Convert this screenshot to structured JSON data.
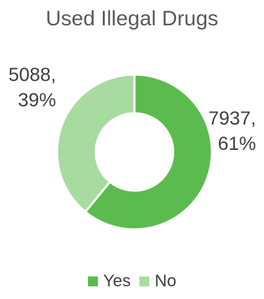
{
  "chart_data": {
    "type": "pie",
    "subtype": "donut",
    "title": "Used Illegal Drugs",
    "categories": [
      "Yes",
      "No"
    ],
    "values": [
      7937,
      5088
    ],
    "percent_labels": [
      "61%",
      "39%"
    ],
    "value_labels": [
      "7937,",
      "5088,"
    ],
    "colors": [
      "#5cbb4f",
      "#a8dba0"
    ],
    "legend": {
      "position": "bottom",
      "entries": [
        "Yes",
        "No"
      ]
    }
  }
}
